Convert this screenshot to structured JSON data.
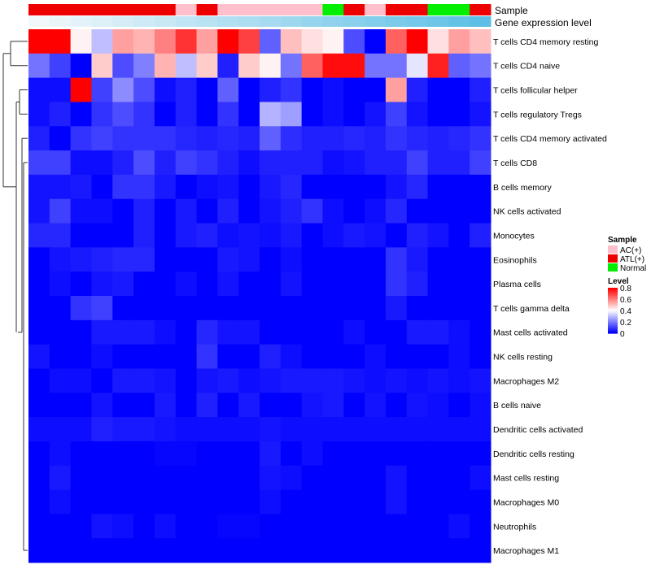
{
  "chart_data": {
    "type": "heatmap",
    "title": "",
    "annotation_rows": [
      "Sample",
      "Gene expression level"
    ],
    "sample_groups": [
      "ATL(+)",
      "ATL(+)",
      "ATL(+)",
      "ATL(+)",
      "ATL(+)",
      "ATL(+)",
      "ATL(+)",
      "AC(+)",
      "ATL(+)",
      "AC(+)",
      "AC(+)",
      "AC(+)",
      "AC(+)",
      "AC(+)",
      "Normal",
      "ATL(+)",
      "AC(+)",
      "ATL(+)",
      "ATL(+)",
      "Normal",
      "Normal",
      "ATL(+)"
    ],
    "gene_expression_level": [
      0.0,
      0.05,
      0.09,
      0.14,
      0.19,
      0.24,
      0.28,
      0.33,
      0.38,
      0.43,
      0.47,
      0.52,
      0.57,
      0.62,
      0.66,
      0.71,
      0.76,
      0.81,
      0.85,
      0.9,
      0.95,
      1.0
    ],
    "cell_types": [
      "T cells CD4 memory resting",
      "T cells CD4 naive",
      "T cells follicular helper",
      "T cells regulatory  Tregs",
      "T cells CD4 memory activated",
      "T cells CD8",
      "B cells memory",
      "NK cells activated",
      "Monocytes",
      "Eosinophils",
      "Plasma cells",
      "T cells gamma delta",
      "Mast cells activated",
      "NK cells resting",
      "Macrophages M2",
      "B cells naive",
      "Dendritic cells activated",
      "Dendritic cells resting",
      "Mast cells resting",
      "Macrophages M0",
      "Neutrophils",
      "Macrophages M1"
    ],
    "values": [
      [
        0.8,
        0.8,
        0.42,
        0.3,
        0.55,
        0.52,
        0.6,
        0.72,
        0.55,
        0.8,
        0.7,
        0.15,
        0.5,
        0.45,
        0.42,
        0.12,
        0.0,
        0.65,
        0.8,
        0.45,
        0.55,
        0.5
      ],
      [
        0.18,
        0.1,
        0.0,
        0.48,
        0.12,
        0.2,
        0.52,
        0.3,
        0.48,
        0.05,
        0.48,
        0.42,
        0.18,
        0.65,
        0.78,
        0.78,
        0.18,
        0.18,
        0.36,
        0.75,
        0.15,
        0.18
      ],
      [
        0.02,
        0.02,
        0.8,
        0.1,
        0.22,
        0.12,
        0.02,
        0.05,
        0.0,
        0.15,
        0.0,
        0.05,
        0.08,
        0.0,
        0.02,
        0.0,
        0.0,
        0.55,
        0.05,
        0.0,
        0.0,
        0.05
      ],
      [
        0.02,
        0.05,
        0.0,
        0.08,
        0.12,
        0.08,
        0.0,
        0.05,
        0.0,
        0.08,
        0.0,
        0.28,
        0.25,
        0.0,
        0.02,
        0.0,
        0.03,
        0.1,
        0.03,
        0.0,
        0.0,
        0.03
      ],
      [
        0.05,
        0.0,
        0.08,
        0.1,
        0.08,
        0.08,
        0.08,
        0.06,
        0.05,
        0.06,
        0.05,
        0.15,
        0.07,
        0.05,
        0.05,
        0.06,
        0.05,
        0.08,
        0.06,
        0.05,
        0.06,
        0.08
      ],
      [
        0.1,
        0.1,
        0.02,
        0.02,
        0.05,
        0.12,
        0.05,
        0.1,
        0.08,
        0.05,
        0.02,
        0.05,
        0.05,
        0.05,
        0.02,
        0.03,
        0.05,
        0.05,
        0.1,
        0.05,
        0.05,
        0.1
      ],
      [
        0.03,
        0.03,
        0.04,
        0.0,
        0.08,
        0.08,
        0.04,
        0.0,
        0.02,
        0.03,
        0.0,
        0.04,
        0.06,
        0.0,
        0.0,
        0.0,
        0.0,
        0.03,
        0.06,
        0.0,
        0.0,
        0.0
      ],
      [
        0.03,
        0.1,
        0.02,
        0.02,
        0.0,
        0.05,
        0.0,
        0.04,
        0.0,
        0.05,
        0.0,
        0.03,
        0.05,
        0.08,
        0.02,
        0.0,
        0.02,
        0.06,
        0.0,
        0.0,
        0.0,
        0.0
      ],
      [
        0.06,
        0.06,
        0.0,
        0.0,
        0.0,
        0.05,
        0.0,
        0.04,
        0.05,
        0.02,
        0.03,
        0.02,
        0.04,
        0.0,
        0.02,
        0.04,
        0.03,
        0.0,
        0.05,
        0.03,
        0.0,
        0.05
      ],
      [
        0.0,
        0.03,
        0.04,
        0.05,
        0.06,
        0.06,
        0.0,
        0.0,
        0.0,
        0.04,
        0.03,
        0.0,
        0.02,
        0.0,
        0.0,
        0.0,
        0.0,
        0.08,
        0.04,
        0.0,
        0.0,
        0.0
      ],
      [
        0.0,
        0.02,
        0.0,
        0.03,
        0.04,
        0.0,
        0.0,
        0.02,
        0.0,
        0.03,
        0.0,
        0.0,
        0.03,
        0.0,
        0.0,
        0.0,
        0.0,
        0.08,
        0.05,
        0.0,
        0.0,
        0.0
      ],
      [
        0.0,
        0.0,
        0.08,
        0.1,
        0.0,
        0.0,
        0.0,
        0.0,
        0.0,
        0.0,
        0.0,
        0.0,
        0.0,
        0.0,
        0.0,
        0.0,
        0.0,
        0.04,
        0.0,
        0.0,
        0.0,
        0.0
      ],
      [
        0.0,
        0.0,
        0.0,
        0.04,
        0.04,
        0.04,
        0.02,
        0.0,
        0.06,
        0.03,
        0.03,
        0.0,
        0.0,
        0.0,
        0.0,
        0.02,
        0.0,
        0.0,
        0.04,
        0.04,
        0.02,
        0.0
      ],
      [
        0.03,
        0.0,
        0.0,
        0.02,
        0.0,
        0.0,
        0.0,
        0.0,
        0.08,
        0.0,
        0.0,
        0.05,
        0.02,
        0.0,
        0.0,
        0.0,
        0.02,
        0.0,
        0.0,
        0.0,
        0.02,
        0.0
      ],
      [
        0.0,
        0.02,
        0.02,
        0.0,
        0.04,
        0.04,
        0.03,
        0.0,
        0.03,
        0.04,
        0.02,
        0.03,
        0.04,
        0.04,
        0.04,
        0.03,
        0.02,
        0.03,
        0.02,
        0.03,
        0.02,
        0.03
      ],
      [
        0.0,
        0.0,
        0.0,
        0.03,
        0.0,
        0.0,
        0.04,
        0.0,
        0.05,
        0.0,
        0.04,
        0.0,
        0.0,
        0.03,
        0.04,
        0.0,
        0.03,
        0.0,
        0.03,
        0.02,
        0.0,
        0.02
      ],
      [
        0.02,
        0.02,
        0.02,
        0.05,
        0.04,
        0.04,
        0.03,
        0.02,
        0.02,
        0.02,
        0.02,
        0.03,
        0.02,
        0.02,
        0.02,
        0.02,
        0.02,
        0.02,
        0.02,
        0.02,
        0.02,
        0.02
      ],
      [
        0.0,
        0.02,
        0.0,
        0.0,
        0.0,
        0.0,
        0.01,
        0.01,
        0.0,
        0.0,
        0.0,
        0.04,
        0.0,
        0.02,
        0.0,
        0.0,
        0.0,
        0.0,
        0.0,
        0.0,
        0.0,
        0.0
      ],
      [
        0.0,
        0.04,
        0.0,
        0.0,
        0.0,
        0.0,
        0.0,
        0.0,
        0.0,
        0.0,
        0.0,
        0.03,
        0.02,
        0.0,
        0.0,
        0.0,
        0.0,
        0.03,
        0.0,
        0.0,
        0.0,
        0.02
      ],
      [
        0.0,
        0.02,
        0.0,
        0.0,
        0.0,
        0.0,
        0.0,
        0.0,
        0.0,
        0.0,
        0.0,
        0.02,
        0.0,
        0.0,
        0.0,
        0.0,
        0.0,
        0.03,
        0.0,
        0.0,
        0.0,
        0.0
      ],
      [
        0.0,
        0.0,
        0.0,
        0.03,
        0.02,
        0.0,
        0.02,
        0.0,
        0.0,
        0.01,
        0.01,
        0.0,
        0.0,
        0.0,
        0.0,
        0.0,
        0.0,
        0.0,
        0.0,
        0.0,
        0.02,
        0.0
      ],
      [
        0.0,
        0.0,
        0.0,
        0.0,
        0.0,
        0.0,
        0.0,
        0.0,
        0.0,
        0.0,
        0.0,
        0.0,
        0.0,
        0.0,
        0.0,
        0.0,
        0.0,
        0.0,
        0.0,
        0.0,
        0.0,
        0.0
      ]
    ],
    "color_scale": {
      "min": 0,
      "max": 0.8,
      "low": "#0000ff",
      "mid": "#ffffff",
      "high": "#ff0000",
      "midpoint": 0.4
    },
    "legend": {
      "sample_title": "Sample",
      "sample_items": [
        {
          "label": "AC(+)",
          "color": "#ffc0cb"
        },
        {
          "label": "ATL(+)",
          "color": "#ee0000"
        },
        {
          "label": "Normal",
          "color": "#00ee00"
        }
      ],
      "level_title": "Level",
      "level_ticks": [
        0.8,
        0.6,
        0.4,
        0.2,
        0
      ],
      "position": "right"
    },
    "dendrogram": "rows",
    "gene_expression_colors": {
      "low": "#f1f8fb",
      "high": "#5ebfe6"
    }
  }
}
